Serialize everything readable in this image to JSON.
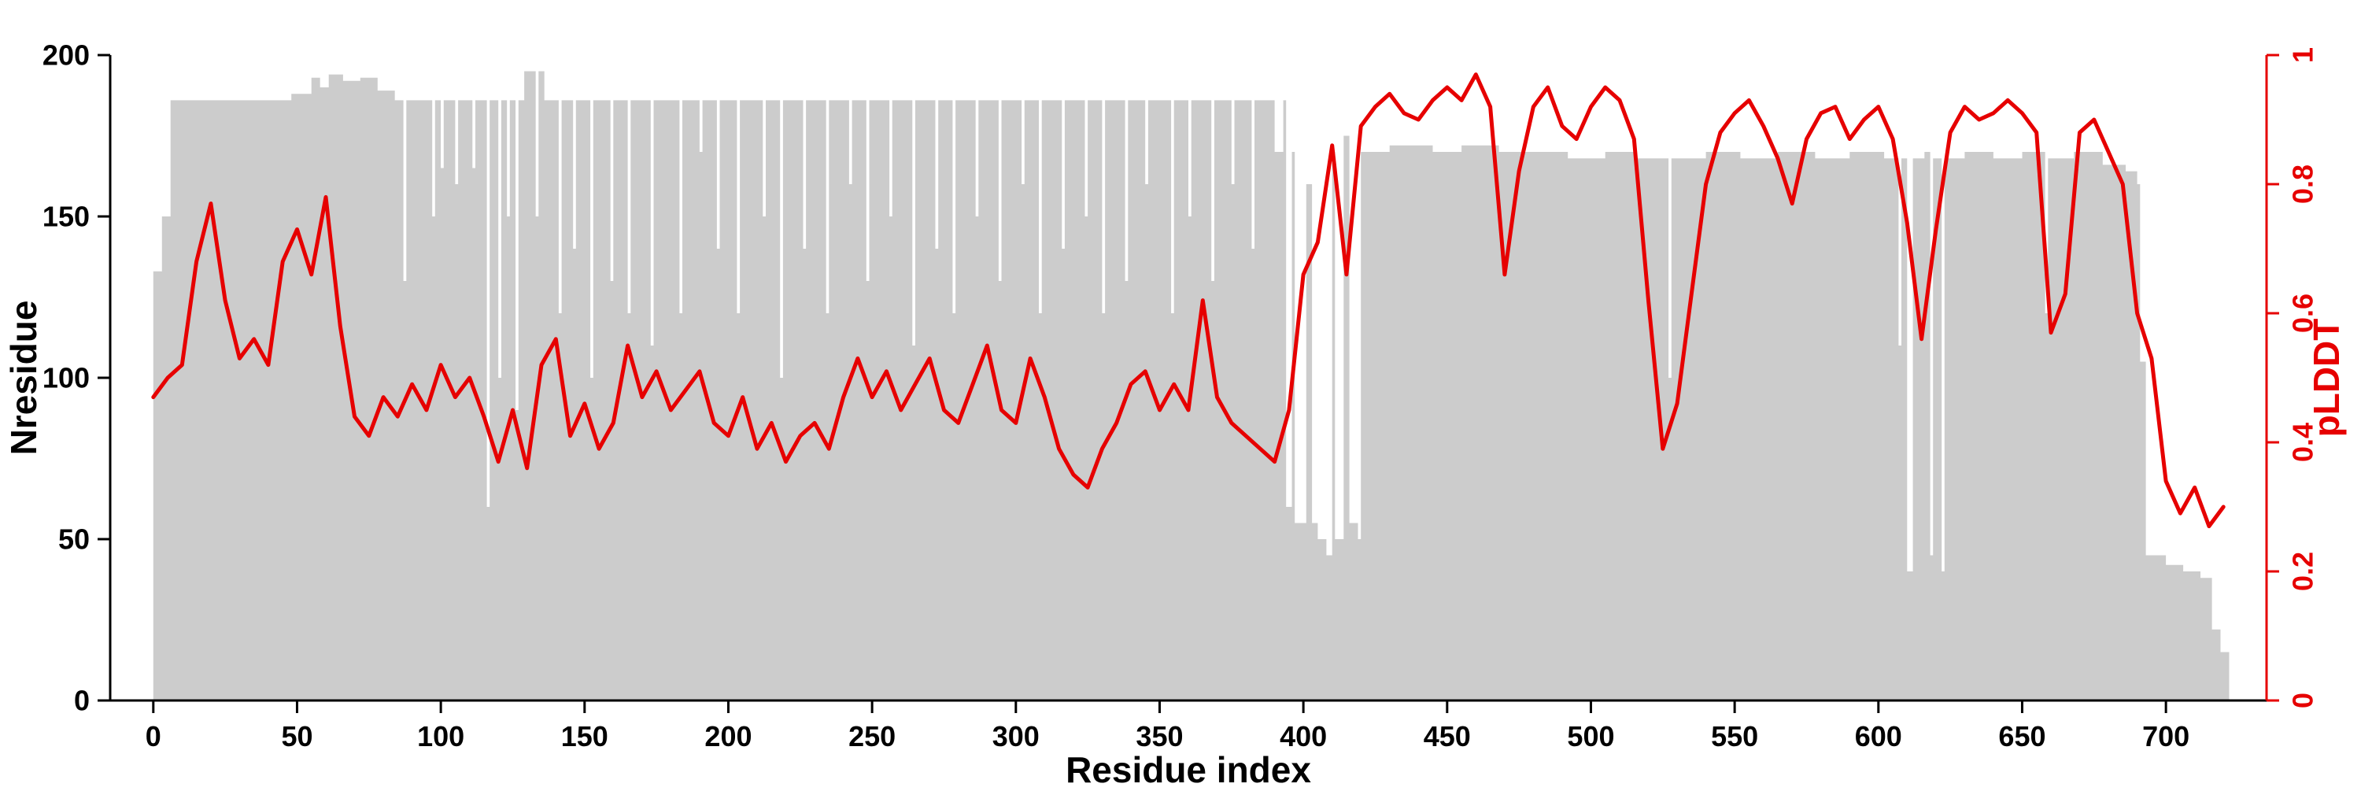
{
  "figure": {
    "background": "#ffffff"
  },
  "chart_data": {
    "type": "line",
    "title": "",
    "xlabel": "Residue index",
    "ylabel_left": "Nresidue",
    "ylabel_right": "pLDDT",
    "xlim": [
      -15,
      735
    ],
    "ylim_left": [
      0,
      200
    ],
    "ylim_right": [
      0,
      1
    ],
    "grid": false,
    "legend": "none",
    "x_ticks": [
      0,
      50,
      100,
      150,
      200,
      250,
      300,
      350,
      400,
      450,
      500,
      550,
      600,
      650,
      700
    ],
    "x_tick_labels": [
      "0",
      "50",
      "100",
      "150",
      "200",
      "250",
      "300",
      "350",
      "400",
      "450",
      "500",
      "550",
      "600",
      "650",
      "700"
    ],
    "y_ticks_left": [
      0,
      50,
      100,
      150,
      200
    ],
    "y_tick_labels_left": [
      "0",
      "50",
      "100",
      "150",
      "200"
    ],
    "y_ticks_right": [
      0,
      0.2,
      0.4,
      0.6,
      0.8,
      1
    ],
    "y_tick_labels_right": [
      "0",
      "0.2",
      "0.4",
      "0.6",
      "0.8",
      "1"
    ],
    "colors": {
      "area": "#cccccc",
      "line": "#e60000",
      "axis_left": "#000000",
      "axis_bottom": "#000000",
      "axis_right": "#e60000",
      "background": "#ffffff"
    },
    "series": [
      {
        "name": "Nresidue",
        "style": "step-area",
        "color": "#cccccc",
        "axis": "left",
        "x_end": 722,
        "points": [
          [
            0,
            133
          ],
          [
            3,
            150
          ],
          [
            6,
            186
          ],
          [
            48,
            188
          ],
          [
            55,
            193
          ],
          [
            58,
            190
          ],
          [
            61,
            194
          ],
          [
            66,
            192
          ],
          [
            72,
            193
          ],
          [
            78,
            189
          ],
          [
            84,
            186
          ],
          [
            87,
            130
          ],
          [
            88,
            186
          ],
          [
            96,
            186
          ],
          [
            97,
            150
          ],
          [
            98,
            186
          ],
          [
            100,
            165
          ],
          [
            101,
            186
          ],
          [
            105,
            160
          ],
          [
            106,
            186
          ],
          [
            111,
            165
          ],
          [
            112,
            186
          ],
          [
            116,
            60
          ],
          [
            117,
            186
          ],
          [
            120,
            100
          ],
          [
            121,
            186
          ],
          [
            123,
            150
          ],
          [
            124,
            186
          ],
          [
            126,
            90
          ],
          [
            127,
            186
          ],
          [
            129,
            195
          ],
          [
            133,
            150
          ],
          [
            134,
            195
          ],
          [
            136,
            186
          ],
          [
            141,
            120
          ],
          [
            142,
            186
          ],
          [
            146,
            140
          ],
          [
            147,
            186
          ],
          [
            152,
            100
          ],
          [
            153,
            186
          ],
          [
            159,
            130
          ],
          [
            160,
            186
          ],
          [
            165,
            120
          ],
          [
            166,
            186
          ],
          [
            173,
            110
          ],
          [
            174,
            186
          ],
          [
            183,
            120
          ],
          [
            184,
            186
          ],
          [
            190,
            170
          ],
          [
            191,
            186
          ],
          [
            196,
            140
          ],
          [
            197,
            186
          ],
          [
            203,
            120
          ],
          [
            204,
            186
          ],
          [
            212,
            150
          ],
          [
            213,
            186
          ],
          [
            218,
            100
          ],
          [
            219,
            186
          ],
          [
            226,
            140
          ],
          [
            227,
            186
          ],
          [
            234,
            120
          ],
          [
            235,
            186
          ],
          [
            242,
            160
          ],
          [
            243,
            186
          ],
          [
            248,
            130
          ],
          [
            249,
            186
          ],
          [
            256,
            150
          ],
          [
            257,
            186
          ],
          [
            264,
            110
          ],
          [
            265,
            186
          ],
          [
            272,
            140
          ],
          [
            273,
            186
          ],
          [
            278,
            120
          ],
          [
            279,
            186
          ],
          [
            286,
            150
          ],
          [
            287,
            186
          ],
          [
            294,
            130
          ],
          [
            295,
            186
          ],
          [
            302,
            160
          ],
          [
            303,
            186
          ],
          [
            308,
            120
          ],
          [
            309,
            186
          ],
          [
            316,
            140
          ],
          [
            317,
            186
          ],
          [
            324,
            150
          ],
          [
            325,
            186
          ],
          [
            330,
            120
          ],
          [
            331,
            186
          ],
          [
            338,
            130
          ],
          [
            339,
            186
          ],
          [
            345,
            160
          ],
          [
            346,
            186
          ],
          [
            354,
            120
          ],
          [
            355,
            186
          ],
          [
            360,
            150
          ],
          [
            361,
            186
          ],
          [
            368,
            130
          ],
          [
            369,
            186
          ],
          [
            375,
            160
          ],
          [
            376,
            186
          ],
          [
            382,
            140
          ],
          [
            383,
            186
          ],
          [
            390,
            170
          ],
          [
            393,
            186
          ],
          [
            394,
            60
          ],
          [
            396,
            170
          ],
          [
            397,
            55
          ],
          [
            401,
            160
          ],
          [
            403,
            55
          ],
          [
            405,
            50
          ],
          [
            408,
            45
          ],
          [
            410,
            170
          ],
          [
            411,
            50
          ],
          [
            414,
            175
          ],
          [
            416,
            55
          ],
          [
            419,
            50
          ],
          [
            420,
            170
          ],
          [
            430,
            172
          ],
          [
            445,
            170
          ],
          [
            455,
            172
          ],
          [
            468,
            170
          ],
          [
            480,
            170
          ],
          [
            492,
            168
          ],
          [
            505,
            170
          ],
          [
            515,
            168
          ],
          [
            527,
            100
          ],
          [
            528,
            168
          ],
          [
            540,
            170
          ],
          [
            552,
            168
          ],
          [
            565,
            170
          ],
          [
            578,
            168
          ],
          [
            590,
            170
          ],
          [
            602,
            168
          ],
          [
            607,
            110
          ],
          [
            608,
            168
          ],
          [
            610,
            40
          ],
          [
            612,
            168
          ],
          [
            616,
            170
          ],
          [
            618,
            45
          ],
          [
            619,
            168
          ],
          [
            622,
            40
          ],
          [
            623,
            168
          ],
          [
            630,
            170
          ],
          [
            640,
            168
          ],
          [
            650,
            170
          ],
          [
            658,
            120
          ],
          [
            659,
            168
          ],
          [
            668,
            170
          ],
          [
            678,
            166
          ],
          [
            686,
            164
          ],
          [
            690,
            160
          ],
          [
            691,
            105
          ],
          [
            693,
            45
          ],
          [
            700,
            42
          ],
          [
            706,
            40
          ],
          [
            712,
            38
          ],
          [
            716,
            22
          ],
          [
            719,
            15
          ]
        ]
      },
      {
        "name": "pLDDT",
        "style": "line",
        "color": "#e60000",
        "axis": "right",
        "points": [
          [
            0,
            0.47
          ],
          [
            5,
            0.5
          ],
          [
            10,
            0.52
          ],
          [
            15,
            0.68
          ],
          [
            20,
            0.77
          ],
          [
            25,
            0.62
          ],
          [
            30,
            0.53
          ],
          [
            35,
            0.56
          ],
          [
            40,
            0.52
          ],
          [
            45,
            0.68
          ],
          [
            50,
            0.73
          ],
          [
            55,
            0.66
          ],
          [
            60,
            0.78
          ],
          [
            65,
            0.58
          ],
          [
            70,
            0.44
          ],
          [
            75,
            0.41
          ],
          [
            80,
            0.47
          ],
          [
            85,
            0.44
          ],
          [
            90,
            0.49
          ],
          [
            95,
            0.45
          ],
          [
            100,
            0.52
          ],
          [
            105,
            0.47
          ],
          [
            110,
            0.5
          ],
          [
            115,
            0.44
          ],
          [
            120,
            0.37
          ],
          [
            125,
            0.45
          ],
          [
            130,
            0.36
          ],
          [
            135,
            0.52
          ],
          [
            140,
            0.56
          ],
          [
            145,
            0.41
          ],
          [
            150,
            0.46
          ],
          [
            155,
            0.39
          ],
          [
            160,
            0.43
          ],
          [
            165,
            0.55
          ],
          [
            170,
            0.47
          ],
          [
            175,
            0.51
          ],
          [
            180,
            0.45
          ],
          [
            185,
            0.48
          ],
          [
            190,
            0.51
          ],
          [
            195,
            0.43
          ],
          [
            200,
            0.41
          ],
          [
            205,
            0.47
          ],
          [
            210,
            0.39
          ],
          [
            215,
            0.43
          ],
          [
            220,
            0.37
          ],
          [
            225,
            0.41
          ],
          [
            230,
            0.43
          ],
          [
            235,
            0.39
          ],
          [
            240,
            0.47
          ],
          [
            245,
            0.53
          ],
          [
            250,
            0.47
          ],
          [
            255,
            0.51
          ],
          [
            260,
            0.45
          ],
          [
            265,
            0.49
          ],
          [
            270,
            0.53
          ],
          [
            275,
            0.45
          ],
          [
            280,
            0.43
          ],
          [
            285,
            0.49
          ],
          [
            290,
            0.55
          ],
          [
            295,
            0.45
          ],
          [
            300,
            0.43
          ],
          [
            305,
            0.53
          ],
          [
            310,
            0.47
          ],
          [
            315,
            0.39
          ],
          [
            320,
            0.35
          ],
          [
            325,
            0.33
          ],
          [
            330,
            0.39
          ],
          [
            335,
            0.43
          ],
          [
            340,
            0.49
          ],
          [
            345,
            0.51
          ],
          [
            350,
            0.45
          ],
          [
            355,
            0.49
          ],
          [
            360,
            0.45
          ],
          [
            365,
            0.62
          ],
          [
            370,
            0.47
          ],
          [
            375,
            0.43
          ],
          [
            380,
            0.41
          ],
          [
            385,
            0.39
          ],
          [
            390,
            0.37
          ],
          [
            395,
            0.45
          ],
          [
            400,
            0.66
          ],
          [
            405,
            0.71
          ],
          [
            410,
            0.86
          ],
          [
            415,
            0.66
          ],
          [
            420,
            0.89
          ],
          [
            425,
            0.92
          ],
          [
            430,
            0.94
          ],
          [
            435,
            0.91
          ],
          [
            440,
            0.9
          ],
          [
            445,
            0.93
          ],
          [
            450,
            0.95
          ],
          [
            455,
            0.93
          ],
          [
            460,
            0.97
          ],
          [
            465,
            0.92
          ],
          [
            470,
            0.66
          ],
          [
            475,
            0.82
          ],
          [
            480,
            0.92
          ],
          [
            485,
            0.95
          ],
          [
            490,
            0.89
          ],
          [
            495,
            0.87
          ],
          [
            500,
            0.92
          ],
          [
            505,
            0.95
          ],
          [
            510,
            0.93
          ],
          [
            515,
            0.87
          ],
          [
            520,
            0.62
          ],
          [
            525,
            0.39
          ],
          [
            530,
            0.46
          ],
          [
            535,
            0.63
          ],
          [
            540,
            0.8
          ],
          [
            545,
            0.88
          ],
          [
            550,
            0.91
          ],
          [
            555,
            0.93
          ],
          [
            560,
            0.89
          ],
          [
            565,
            0.84
          ],
          [
            570,
            0.77
          ],
          [
            575,
            0.87
          ],
          [
            580,
            0.91
          ],
          [
            585,
            0.92
          ],
          [
            590,
            0.87
          ],
          [
            595,
            0.9
          ],
          [
            600,
            0.92
          ],
          [
            605,
            0.87
          ],
          [
            610,
            0.74
          ],
          [
            615,
            0.56
          ],
          [
            620,
            0.73
          ],
          [
            625,
            0.88
          ],
          [
            630,
            0.92
          ],
          [
            635,
            0.9
          ],
          [
            640,
            0.91
          ],
          [
            645,
            0.93
          ],
          [
            650,
            0.91
          ],
          [
            655,
            0.88
          ],
          [
            660,
            0.57
          ],
          [
            665,
            0.63
          ],
          [
            670,
            0.88
          ],
          [
            675,
            0.9
          ],
          [
            680,
            0.85
          ],
          [
            685,
            0.8
          ],
          [
            690,
            0.6
          ],
          [
            695,
            0.53
          ],
          [
            700,
            0.34
          ],
          [
            705,
            0.29
          ],
          [
            710,
            0.33
          ],
          [
            715,
            0.27
          ],
          [
            720,
            0.3
          ]
        ]
      }
    ]
  }
}
